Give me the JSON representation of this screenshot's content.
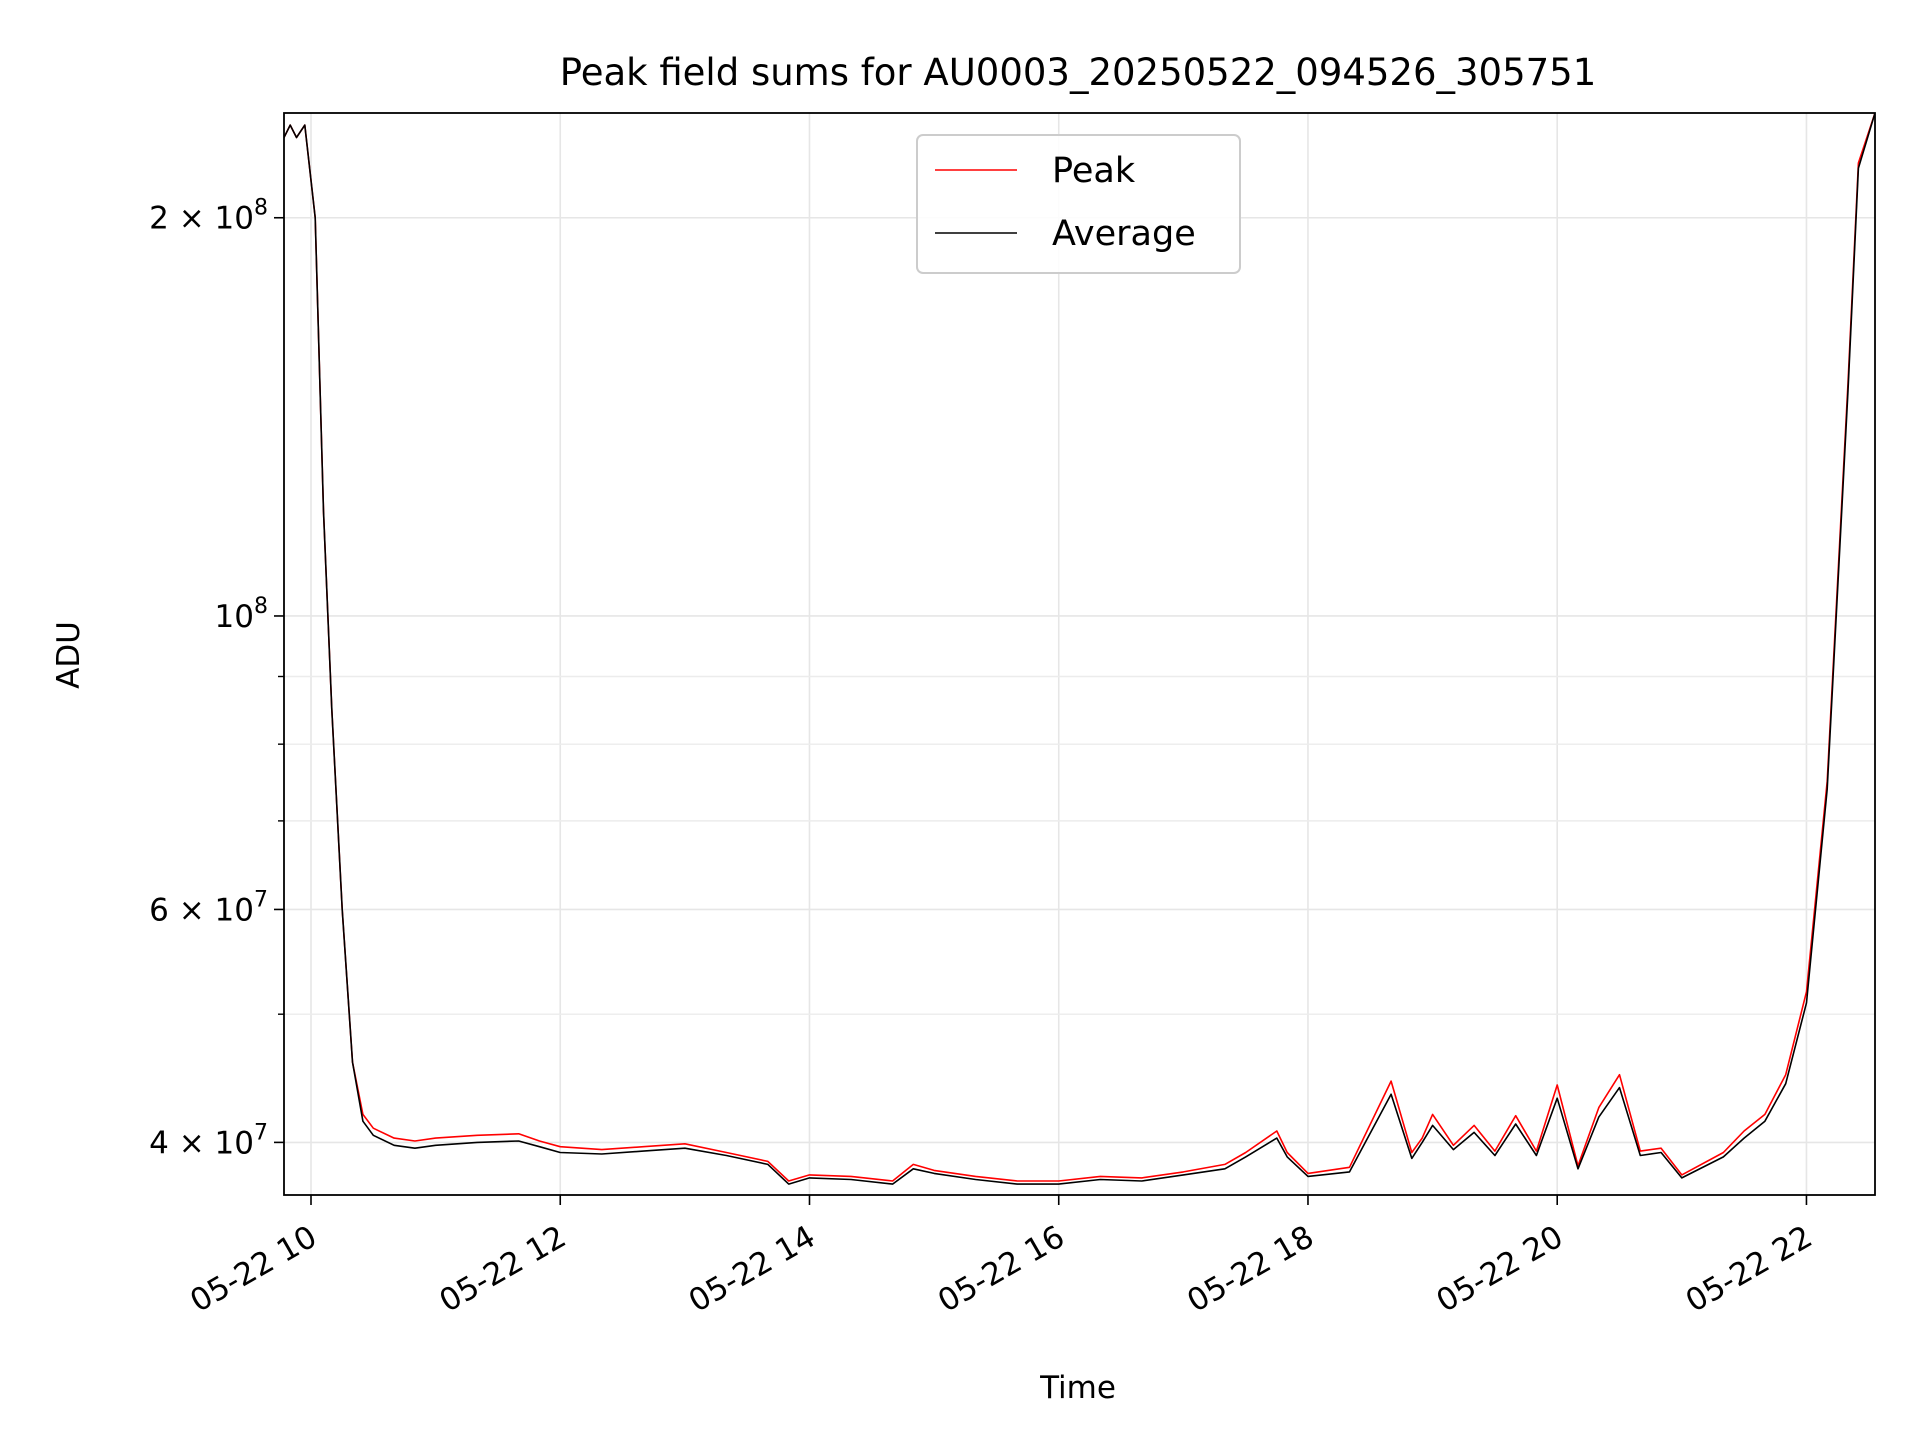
{
  "chart_data": {
    "type": "line",
    "title": "Peak field sums for AU0003_20250522_094526_305751",
    "xlabel": "Time",
    "ylabel": "ADU",
    "xlim": [
      "05-22 09:47",
      "05-22 22:33"
    ],
    "ylim": [
      36500000,
      240000000
    ],
    "yscale": "log",
    "grid": true,
    "legend_position": "top-center",
    "x_ticks": [
      "05-22 10",
      "05-22 12",
      "05-22 14",
      "05-22 16",
      "05-22 18",
      "05-22 20",
      "05-22 22"
    ],
    "y_ticks": [
      {
        "value": 200000000,
        "label": "2 × 10^8",
        "mantissa": "2 × 10",
        "exp": "8"
      },
      {
        "value": 100000000,
        "label": "10^8",
        "mantissa": "10",
        "exp": "8"
      },
      {
        "value": 60000000,
        "label": "6 × 10^7",
        "mantissa": "6 × 10",
        "exp": "7"
      },
      {
        "value": 40000000,
        "label": "4 × 10^7",
        "mantissa": "4 × 10",
        "exp": "7"
      }
    ],
    "y_minor_ticks": [
      90000000,
      80000000,
      70000000,
      50000000
    ],
    "x": [
      "09:47",
      "09:50",
      "09:53",
      "09:57",
      "10:02",
      "10:06",
      "10:10",
      "10:15",
      "10:20",
      "10:25",
      "10:30",
      "10:40",
      "10:50",
      "11:00",
      "11:20",
      "11:40",
      "11:50",
      "12:00",
      "12:20",
      "12:40",
      "13:00",
      "13:20",
      "13:40",
      "13:50",
      "14:00",
      "14:20",
      "14:40",
      "14:50",
      "15:00",
      "15:20",
      "15:40",
      "16:00",
      "16:20",
      "16:40",
      "17:00",
      "17:20",
      "17:30",
      "17:45",
      "17:50",
      "18:00",
      "18:20",
      "18:40",
      "18:50",
      "18:55",
      "19:00",
      "19:10",
      "19:20",
      "19:30",
      "19:40",
      "19:50",
      "20:00",
      "20:10",
      "20:20",
      "20:30",
      "20:40",
      "20:50",
      "21:00",
      "21:20",
      "21:30",
      "21:40",
      "21:50",
      "22:00",
      "22:10",
      "22:20",
      "22:25",
      "22:33"
    ],
    "series": [
      {
        "name": "Peak",
        "color": "#ff0000",
        "values": [
          230000000,
          235000000,
          230000000,
          235000000,
          200000000,
          120000000,
          85000000,
          60000000,
          46000000,
          42000000,
          41000000,
          40300000,
          40100000,
          40300000,
          40500000,
          40600000,
          40100000,
          39700000,
          39500000,
          39700000,
          39900000,
          39300000,
          38700000,
          37400000,
          37800000,
          37700000,
          37400000,
          38500000,
          38100000,
          37700000,
          37400000,
          37400000,
          37700000,
          37600000,
          38000000,
          38500000,
          39300000,
          40800000,
          39300000,
          37900000,
          38300000,
          44500000,
          39300000,
          40300000,
          42000000,
          39800000,
          41200000,
          39400000,
          41900000,
          39400000,
          44200000,
          38400000,
          42500000,
          45000000,
          39400000,
          39600000,
          37800000,
          39300000,
          40800000,
          42000000,
          45000000,
          52000000,
          75000000,
          150000000,
          220000000,
          240000000
        ]
      },
      {
        "name": "Average",
        "color": "#000000",
        "values": [
          230000000,
          235000000,
          230000000,
          235000000,
          200000000,
          120000000,
          85000000,
          60000000,
          46000000,
          41500000,
          40500000,
          39800000,
          39600000,
          39800000,
          40000000,
          40100000,
          39700000,
          39300000,
          39200000,
          39400000,
          39600000,
          39100000,
          38500000,
          37200000,
          37600000,
          37500000,
          37200000,
          38200000,
          37900000,
          37500000,
          37200000,
          37200000,
          37500000,
          37400000,
          37800000,
          38200000,
          39000000,
          40300000,
          39000000,
          37700000,
          38000000,
          43500000,
          38900000,
          40000000,
          41200000,
          39500000,
          40700000,
          39100000,
          41300000,
          39100000,
          43200000,
          38200000,
          41800000,
          44000000,
          39100000,
          39300000,
          37600000,
          39000000,
          40300000,
          41500000,
          44300000,
          51000000,
          74000000,
          148000000,
          218000000,
          240000000
        ]
      }
    ]
  }
}
